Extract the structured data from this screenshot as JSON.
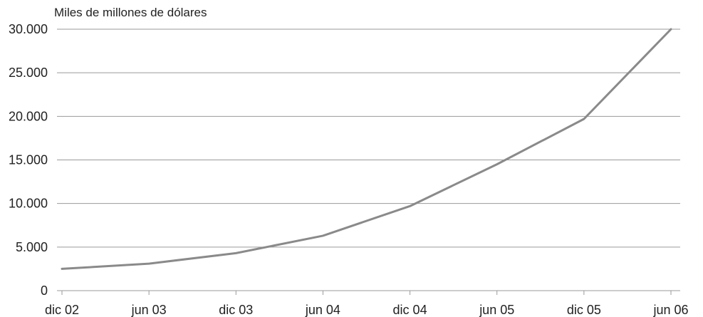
{
  "chart_data": {
    "type": "line",
    "unit_label": "Miles de millones de dólares",
    "categories": [
      "dic 02",
      "jun 03",
      "dic 03",
      "jun 04",
      "dic 04",
      "jun 05",
      "dic 05",
      "jun 06"
    ],
    "series": [
      {
        "values": [
          2500,
          3100,
          4300,
          6300,
          9700,
          14500,
          19700,
          30000
        ]
      }
    ],
    "y_ticks": [
      "0",
      "5.000",
      "10.000",
      "15.000",
      "20.000",
      "25.000",
      "30.000"
    ],
    "y_tick_values": [
      0,
      5000,
      10000,
      15000,
      20000,
      25000,
      30000
    ],
    "ylim": [
      0,
      30000
    ],
    "grid": true,
    "legend": "none",
    "colors": {
      "line": "#8a8a8a",
      "grid": "#9a9a9a"
    }
  }
}
